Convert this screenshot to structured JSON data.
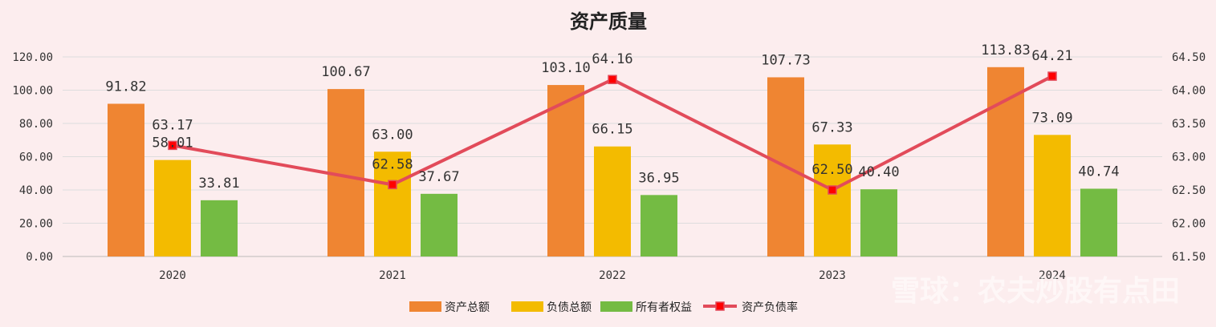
{
  "colors": {
    "background": "#fcedee",
    "grid": "#dddddd",
    "assets": "#ef8532",
    "liabilities": "#f3bb00",
    "equity": "#74bb43",
    "ratio_line": "#e24b5a",
    "ratio_marker": "#ff0000"
  },
  "watermark": {
    "text": "雪球：农夫炒股有点田"
  },
  "chart_data": {
    "type": "bar",
    "title": "资产质量",
    "categories": [
      "2020",
      "2021",
      "2022",
      "2023",
      "2024"
    ],
    "series": [
      {
        "name": "资产总额",
        "type": "bar",
        "axis": "left",
        "values": [
          91.82,
          100.67,
          103.1,
          107.73,
          113.83
        ],
        "labels": [
          "91.82",
          "100.67",
          "103.10",
          "107.73",
          "113.83"
        ]
      },
      {
        "name": "负债总额",
        "type": "bar",
        "axis": "left",
        "values": [
          58.01,
          63.0,
          66.15,
          67.33,
          73.09
        ],
        "labels": [
          "58.01",
          "63.00",
          "66.15",
          "67.33",
          "73.09"
        ]
      },
      {
        "name": "所有者权益",
        "type": "bar",
        "axis": "left",
        "values": [
          33.81,
          37.67,
          36.95,
          40.4,
          40.74
        ],
        "labels": [
          "33.81",
          "37.67",
          "36.95",
          "40.40",
          "40.74"
        ]
      },
      {
        "name": "资产负债率",
        "type": "line",
        "axis": "right",
        "values": [
          63.17,
          62.58,
          64.16,
          62.5,
          64.21
        ],
        "labels": [
          "63.17",
          "62.58",
          "64.16",
          "62.50",
          "64.21"
        ]
      }
    ],
    "y_left": {
      "min": 0,
      "max": 120,
      "ticks": [
        "0.00",
        "20.00",
        "40.00",
        "60.00",
        "80.00",
        "100.00",
        "120.00"
      ]
    },
    "y_right": {
      "min": 61.5,
      "max": 64.5,
      "ticks": [
        "61.50",
        "62.00",
        "62.50",
        "63.00",
        "63.50",
        "64.00",
        "64.50"
      ]
    },
    "grid": true,
    "legend_position": "bottom"
  }
}
